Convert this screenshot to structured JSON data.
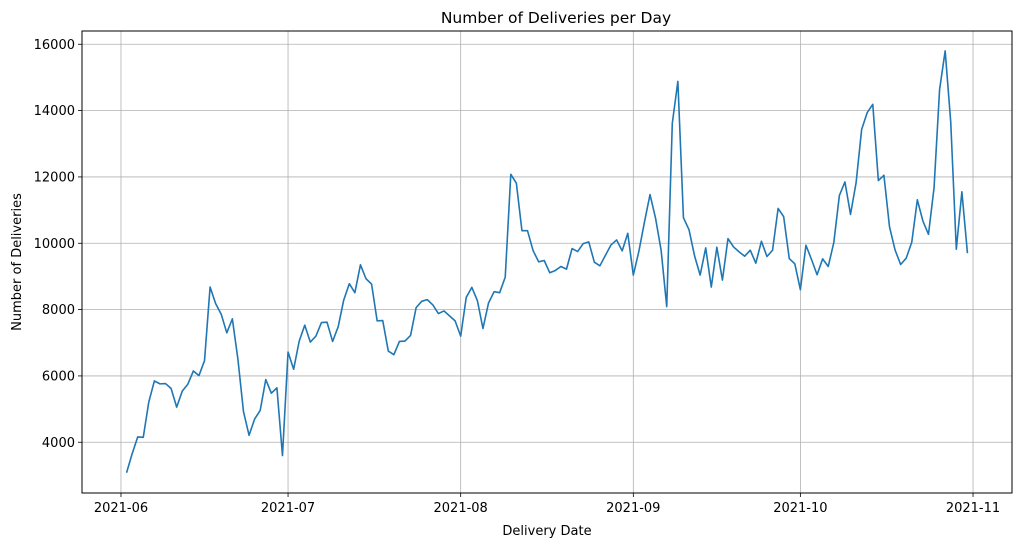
{
  "chart_data": {
    "type": "line",
    "title": "Number of Deliveries per Day",
    "xlabel": "Delivery Date",
    "ylabel": "Number of Deliveries",
    "x_start": "2021-06-02",
    "x_end": "2021-10-31",
    "xlim": [
      "2021-05-25",
      "2021-11-08"
    ],
    "ylim": [
      2470,
      16400
    ],
    "x_ticks": [
      {
        "date": "2021-06-01",
        "label": "2021-06"
      },
      {
        "date": "2021-07-01",
        "label": "2021-07"
      },
      {
        "date": "2021-08-01",
        "label": "2021-08"
      },
      {
        "date": "2021-09-01",
        "label": "2021-09"
      },
      {
        "date": "2021-10-01",
        "label": "2021-10"
      },
      {
        "date": "2021-11-01",
        "label": "2021-11"
      }
    ],
    "y_ticks": [
      {
        "value": 4000,
        "label": "4000"
      },
      {
        "value": 6000,
        "label": "6000"
      },
      {
        "value": 8000,
        "label": "8000"
      },
      {
        "value": 10000,
        "label": "10000"
      },
      {
        "value": 12000,
        "label": "12000"
      },
      {
        "value": 14000,
        "label": "14000"
      },
      {
        "value": 16000,
        "label": "16000"
      }
    ],
    "grid": true,
    "series": [
      {
        "color": "#1f77b4",
        "values": [
          3080,
          3650,
          4160,
          4150,
          5220,
          5850,
          5760,
          5770,
          5620,
          5060,
          5540,
          5750,
          6150,
          6010,
          6460,
          8680,
          8180,
          7860,
          7300,
          7720,
          6500,
          4920,
          4210,
          4700,
          4960,
          5890,
          5480,
          5640,
          3600,
          6720,
          6200,
          7050,
          7530,
          7020,
          7200,
          7610,
          7620,
          7040,
          7480,
          8290,
          8780,
          8510,
          9350,
          8930,
          8770,
          7660,
          7670,
          6750,
          6640,
          7040,
          7050,
          7220,
          8060,
          8250,
          8300,
          8140,
          7880,
          7960,
          7810,
          7660,
          7200,
          8370,
          8670,
          8270,
          7430,
          8200,
          8540,
          8510,
          8980,
          12080,
          11810,
          10380,
          10380,
          9780,
          9440,
          9480,
          9110,
          9180,
          9300,
          9220,
          9840,
          9750,
          9990,
          10040,
          9430,
          9320,
          9640,
          9950,
          10100,
          9770,
          10300,
          9040,
          9760,
          10640,
          11470,
          10750,
          9780,
          8090,
          13620,
          14880,
          10770,
          10410,
          9620,
          9040,
          9860,
          8680,
          9880,
          8890,
          10140,
          9890,
          9740,
          9610,
          9790,
          9400,
          10060,
          9600,
          9790,
          11050,
          10800,
          9540,
          9380,
          8600,
          9940,
          9510,
          9050,
          9530,
          9300,
          10020,
          11440,
          11850,
          10870,
          11820,
          13430,
          13940,
          14190,
          11890,
          12050,
          10500,
          9800,
          9360,
          9550,
          10030,
          11310,
          10670,
          10270,
          11670,
          14640,
          15800,
          13650,
          9820,
          11550,
          9700
        ]
      }
    ]
  }
}
